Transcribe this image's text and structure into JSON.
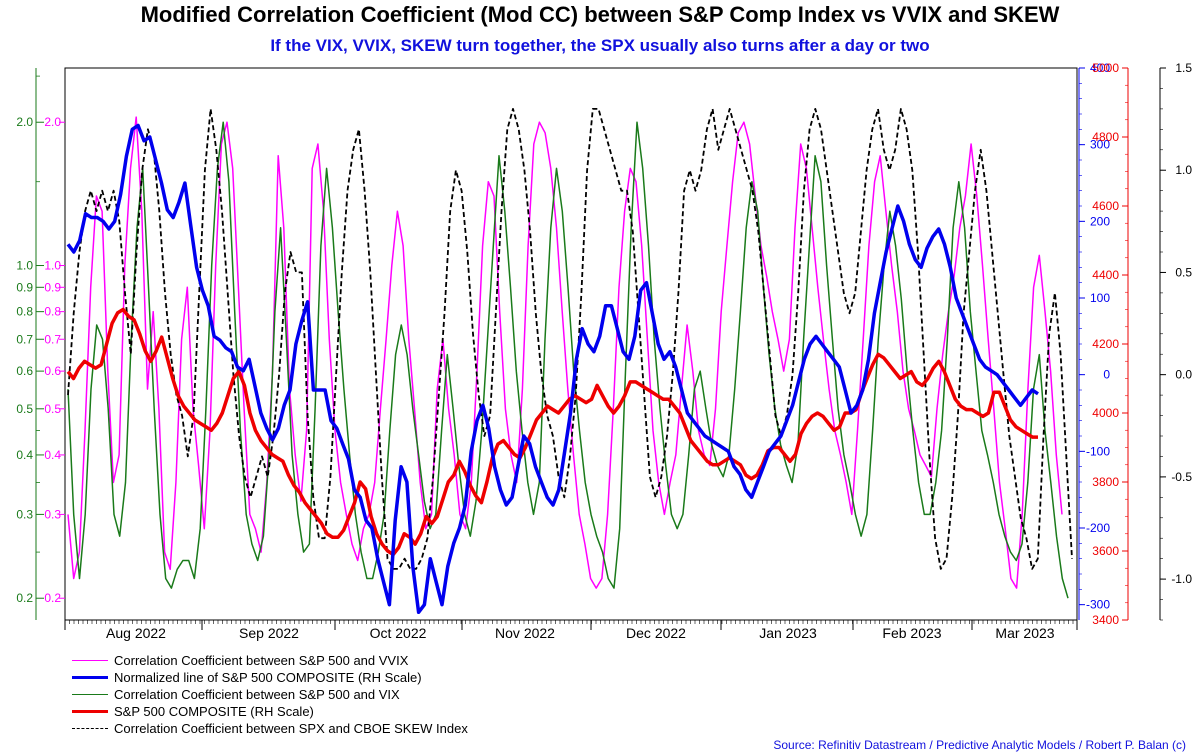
{
  "title": "Modified Correlation Coefficient (Mod CC) between S&P Comp Index vs VVIX and SKEW",
  "subtitle": "If the VIX, VVIX, SKEW turn together, the SPX usually also turns after a day or two",
  "source": "Source: Refinitiv Datastream / Predictive Analytic Models / Robert P. Balan (c)",
  "colors": {
    "vvix": "#ff00ff",
    "norm_spx": "#0000ee",
    "vix": "#1a7a1a",
    "spx": "#ee0000",
    "skew": "#000000",
    "left_axis": "#ff00ff",
    "left_axis2": "#1a7a1a",
    "blue_axis": "#0000ee",
    "red_axis": "#ee0000",
    "black_axis": "#000000"
  },
  "chart_data": {
    "type": "line",
    "x_tick_labels": [
      "Aug 2022",
      "Sep 2022",
      "Oct 2022",
      "Nov 2022",
      "Dec 2022",
      "Jan 2023",
      "Feb 2023",
      "Mar 2023"
    ],
    "left_axis": {
      "scale": "log",
      "range": [
        0.18,
        2.6
      ],
      "tick_labels": [
        "0.2",
        "0.3",
        "0.4",
        "0.5",
        "0.6",
        "0.7",
        "0.8",
        "0.9",
        "1.0",
        "2.0"
      ]
    },
    "blue_axis": {
      "range": [
        -320,
        400
      ],
      "tick_labels": [
        "400",
        "300",
        "200",
        "100",
        "0",
        "-100",
        "-200",
        "-300"
      ]
    },
    "red_axis": {
      "range": [
        3400,
        5000
      ],
      "tick_labels": [
        "5000",
        "4800",
        "4600",
        "4400",
        "4200",
        "4000",
        "3800",
        "3600",
        "3400"
      ]
    },
    "black_axis": {
      "range": [
        -1.2,
        1.5
      ],
      "tick_labels": [
        "1.5",
        "1.0",
        "0.5",
        "0.0",
        "-0.5",
        "-1.0"
      ]
    },
    "series": [
      {
        "name": "Correlation Coefficient between S&P 500 and VVIX",
        "axis": "left",
        "values": [
          0.3,
          0.22,
          0.25,
          0.45,
          0.9,
          1.4,
          1.3,
          0.6,
          0.35,
          0.4,
          1.0,
          1.6,
          2.05,
          1.3,
          0.55,
          0.8,
          0.5,
          0.25,
          0.23,
          0.35,
          0.7,
          0.9,
          0.5,
          0.38,
          0.28,
          0.45,
          1.0,
          1.8,
          2.0,
          1.6,
          0.9,
          0.5,
          0.3,
          0.28,
          0.25,
          0.35,
          0.6,
          1.7,
          1.2,
          0.55,
          0.4,
          0.32,
          0.45,
          1.6,
          1.8,
          1.3,
          0.7,
          0.45,
          0.35,
          0.3,
          0.26,
          0.24,
          0.28,
          0.3,
          0.35,
          0.5,
          0.7,
          1.0,
          1.3,
          1.1,
          0.7,
          0.5,
          0.35,
          0.28,
          0.3,
          0.55,
          0.7,
          0.5,
          0.4,
          0.3,
          0.28,
          0.35,
          0.6,
          1.1,
          1.5,
          1.4,
          0.8,
          0.5,
          0.4,
          0.35,
          0.55,
          1.1,
          1.8,
          2.0,
          1.9,
          1.6,
          1.2,
          0.8,
          0.55,
          0.4,
          0.3,
          0.26,
          0.22,
          0.21,
          0.22,
          0.3,
          0.5,
          0.9,
          1.3,
          1.6,
          1.5,
          1.1,
          0.7,
          0.45,
          0.35,
          0.3,
          0.35,
          0.4,
          0.55,
          0.75,
          0.6,
          0.45,
          0.4,
          0.38,
          0.5,
          0.8,
          1.1,
          1.5,
          1.9,
          2.0,
          1.8,
          1.4,
          1.1,
          0.95,
          0.8,
          0.7,
          0.6,
          0.7,
          1.2,
          1.8,
          1.6,
          1.2,
          0.9,
          0.7,
          0.55,
          0.45,
          0.4,
          0.35,
          0.3,
          0.45,
          0.7,
          1.1,
          1.5,
          1.7,
          1.3,
          1.0,
          0.8,
          0.6,
          0.5,
          0.45,
          0.4,
          0.38,
          0.36,
          0.5,
          0.65,
          0.8,
          0.95,
          1.2,
          1.4,
          1.8,
          1.4,
          1.0,
          0.7,
          0.5,
          0.35,
          0.28,
          0.22,
          0.21,
          0.3,
          0.55,
          0.9,
          1.05,
          0.8,
          0.6,
          0.4,
          0.3
        ]
      },
      {
        "name": "Normalized line of S&P 500 COMPOSITE (RH Scale)",
        "axis": "blue",
        "values": [
          170,
          160,
          175,
          210,
          205,
          205,
          200,
          190,
          200,
          235,
          285,
          320,
          325,
          305,
          310,
          280,
          250,
          215,
          205,
          225,
          250,
          195,
          140,
          110,
          90,
          50,
          45,
          35,
          30,
          10,
          5,
          20,
          -15,
          -50,
          -70,
          -85,
          -70,
          -40,
          -20,
          40,
          70,
          95,
          -20,
          -20,
          -20,
          -60,
          -70,
          -90,
          -110,
          -150,
          -160,
          -190,
          -200,
          -240,
          -270,
          -300,
          -190,
          -120,
          -140,
          -250,
          -310,
          -300,
          -240,
          -270,
          -300,
          -250,
          -220,
          -200,
          -170,
          -100,
          -60,
          -40,
          -70,
          -120,
          -150,
          -170,
          -160,
          -120,
          -80,
          -90,
          -120,
          -140,
          -160,
          -170,
          -150,
          -100,
          -50,
          20,
          60,
          40,
          30,
          50,
          90,
          90,
          60,
          30,
          20,
          50,
          110,
          120,
          80,
          40,
          20,
          30,
          10,
          -20,
          -50,
          -60,
          -70,
          -80,
          -85,
          -90,
          -95,
          -100,
          -120,
          -130,
          -150,
          -160,
          -140,
          -120,
          -100,
          -90,
          -80,
          -60,
          -40,
          -10,
          20,
          40,
          50,
          40,
          30,
          20,
          10,
          -20,
          -50,
          -40,
          -20,
          20,
          80,
          120,
          160,
          190,
          220,
          200,
          170,
          150,
          140,
          165,
          180,
          190,
          170,
          140,
          100,
          80,
          60,
          40,
          20,
          10,
          5,
          0,
          -10,
          -20,
          -30,
          -40,
          -30,
          -20,
          -25
        ]
      },
      {
        "name": "Correlation Coefficient between S&P 500 and VIX",
        "axis": "left",
        "values": [
          0.55,
          0.3,
          0.22,
          0.3,
          0.55,
          0.75,
          0.7,
          0.5,
          0.3,
          0.27,
          0.35,
          0.7,
          1.2,
          1.6,
          0.9,
          0.5,
          0.3,
          0.22,
          0.21,
          0.23,
          0.24,
          0.24,
          0.22,
          0.28,
          0.5,
          1.0,
          1.6,
          2.0,
          1.5,
          0.8,
          0.45,
          0.3,
          0.26,
          0.24,
          0.27,
          0.4,
          0.8,
          1.2,
          0.7,
          0.4,
          0.3,
          0.25,
          0.26,
          0.5,
          1.1,
          1.6,
          1.2,
          0.8,
          0.55,
          0.4,
          0.3,
          0.25,
          0.22,
          0.22,
          0.25,
          0.3,
          0.45,
          0.65,
          0.75,
          0.65,
          0.5,
          0.4,
          0.32,
          0.28,
          0.3,
          0.45,
          0.65,
          0.5,
          0.38,
          0.3,
          0.27,
          0.32,
          0.45,
          0.7,
          1.1,
          1.7,
          1.3,
          0.9,
          0.6,
          0.45,
          0.35,
          0.3,
          0.35,
          0.7,
          1.2,
          1.6,
          1.3,
          0.9,
          0.6,
          0.45,
          0.35,
          0.3,
          0.27,
          0.25,
          0.22,
          0.21,
          0.28,
          0.6,
          1.2,
          2.0,
          1.6,
          1.1,
          0.7,
          0.5,
          0.38,
          0.3,
          0.28,
          0.3,
          0.4,
          0.55,
          0.6,
          0.5,
          0.42,
          0.38,
          0.36,
          0.4,
          0.55,
          0.8,
          1.2,
          1.5,
          1.3,
          0.9,
          0.65,
          0.5,
          0.42,
          0.38,
          0.35,
          0.42,
          0.7,
          1.1,
          1.7,
          1.5,
          1.0,
          0.7,
          0.5,
          0.4,
          0.35,
          0.3,
          0.27,
          0.3,
          0.45,
          0.7,
          1.0,
          1.3,
          1.1,
          0.85,
          0.6,
          0.45,
          0.35,
          0.3,
          0.3,
          0.35,
          0.45,
          0.7,
          1.2,
          1.5,
          1.2,
          0.8,
          0.6,
          0.45,
          0.4,
          0.35,
          0.3,
          0.27,
          0.25,
          0.24,
          0.26,
          0.35,
          0.55,
          0.65,
          0.45,
          0.35,
          0.27,
          0.22,
          0.2
        ]
      },
      {
        "name": "S&P 500 COMPOSITE (RH Scale)",
        "axis": "red",
        "values": [
          4120,
          4100,
          4130,
          4150,
          4140,
          4130,
          4140,
          4200,
          4260,
          4290,
          4300,
          4280,
          4270,
          4230,
          4180,
          4150,
          4180,
          4220,
          4160,
          4100,
          4050,
          4020,
          4000,
          3980,
          3970,
          3960,
          3950,
          3970,
          4000,
          4050,
          4100,
          4120,
          4080,
          4000,
          3950,
          3920,
          3900,
          3880,
          3870,
          3860,
          3820,
          3790,
          3770,
          3740,
          3720,
          3700,
          3680,
          3650,
          3640,
          3640,
          3660,
          3700,
          3740,
          3800,
          3780,
          3700,
          3650,
          3620,
          3600,
          3590,
          3610,
          3650,
          3640,
          3620,
          3650,
          3700,
          3680,
          3700,
          3750,
          3800,
          3820,
          3860,
          3830,
          3790,
          3760,
          3740,
          3800,
          3870,
          3910,
          3920,
          3900,
          3880,
          3870,
          3900,
          3940,
          3980,
          4000,
          4020,
          4010,
          4000,
          4020,
          4040,
          4050,
          4040,
          4030,
          4040,
          4080,
          4050,
          4020,
          4000,
          4020,
          4050,
          4090,
          4090,
          4080,
          4070,
          4060,
          4050,
          4040,
          4040,
          4020,
          4000,
          3960,
          3920,
          3900,
          3880,
          3860,
          3850,
          3850,
          3860,
          3870,
          3860,
          3850,
          3820,
          3810,
          3820,
          3850,
          3890,
          3900,
          3900,
          3880,
          3860,
          3880,
          3940,
          3970,
          3990,
          4000,
          3990,
          3970,
          3950,
          3960,
          4000,
          4000,
          4010,
          4060,
          4100,
          4140,
          4170,
          4160,
          4140,
          4120,
          4100,
          4110,
          4120,
          4090,
          4080,
          4100,
          4130,
          4150,
          4120,
          4080,
          4040,
          4020,
          4010,
          4010,
          4000,
          3990,
          4000,
          4060,
          4060,
          4020,
          3980,
          3960,
          3950,
          3940,
          3930,
          3930
        ]
      },
      {
        "name": "Correlation Coefficient between SPX and CBOE SKEW Index",
        "axis": "black",
        "values": [
          -0.1,
          0.3,
          0.6,
          0.8,
          0.9,
          0.8,
          0.9,
          0.8,
          0.9,
          0.75,
          0.4,
          0.1,
          0.6,
          1.0,
          1.2,
          1.1,
          0.8,
          0.4,
          0.1,
          -0.1,
          -0.2,
          -0.4,
          -0.2,
          0.4,
          1.0,
          1.3,
          1.1,
          0.8,
          0.4,
          0.0,
          -0.3,
          -0.5,
          -0.6,
          -0.5,
          -0.4,
          -0.5,
          -0.3,
          0.0,
          0.4,
          0.6,
          0.5,
          0.5,
          -0.2,
          -0.6,
          -0.8,
          -0.8,
          -0.5,
          0.0,
          0.5,
          0.9,
          1.1,
          1.2,
          0.9,
          0.5,
          0.0,
          -0.5,
          -0.9,
          -0.95,
          -0.95,
          -0.9,
          -0.95,
          -0.95,
          -0.9,
          -0.8,
          -0.5,
          -0.1,
          0.3,
          0.8,
          1.0,
          0.9,
          0.6,
          0.2,
          -0.1,
          -0.3,
          -0.2,
          0.3,
          0.8,
          1.2,
          1.3,
          1.2,
          1.0,
          0.7,
          0.3,
          0.0,
          -0.2,
          -0.3,
          -0.5,
          -0.6,
          -0.4,
          -0.1,
          0.4,
          1.0,
          1.3,
          1.3,
          1.2,
          1.1,
          1.0,
          0.9,
          0.9,
          0.7,
          0.3,
          -0.1,
          -0.5,
          -0.6,
          -0.5,
          -0.3,
          0.0,
          0.4,
          0.9,
          1.0,
          0.9,
          1.0,
          1.2,
          1.3,
          1.1,
          1.2,
          1.3,
          1.2,
          1.1,
          1.0,
          0.9,
          0.7,
          0.4,
          0.1,
          -0.2,
          -0.3,
          -0.2,
          0.0,
          0.4,
          0.9,
          1.2,
          1.3,
          1.2,
          1.0,
          0.8,
          0.6,
          0.4,
          0.3,
          0.4,
          0.7,
          1.0,
          1.2,
          1.3,
          1.1,
          1.0,
          1.1,
          1.3,
          1.2,
          1.0,
          0.6,
          0.1,
          -0.4,
          -0.8,
          -0.95,
          -0.9,
          -0.6,
          -0.2,
          0.3,
          0.6,
          0.9,
          1.1,
          0.9,
          0.6,
          0.3,
          0.0,
          -0.3,
          -0.5,
          -0.7,
          -0.8,
          -0.95,
          -0.9,
          -0.3,
          0.2,
          0.4,
          0.1,
          -0.4,
          -0.9
        ]
      }
    ],
    "legend_placement": "bottom-left",
    "grid": false
  },
  "legend": [
    {
      "label": "Correlation Coefficient between S&P 500 and VVIX",
      "color": "#ff00ff",
      "style": "solid",
      "width": 1.5
    },
    {
      "label": "Normalized line of S&P 500 COMPOSITE (RH Scale)",
      "color": "#0000ee",
      "style": "solid",
      "width": 3.5
    },
    {
      "label": "Correlation Coefficient between S&P 500 and VIX",
      "color": "#1a7a1a",
      "style": "solid",
      "width": 1.5
    },
    {
      "label": "S&P 500 COMPOSITE (RH Scale)",
      "color": "#ee0000",
      "style": "solid",
      "width": 3.5
    },
    {
      "label": "Correlation Coefficient between SPX and CBOE SKEW Index",
      "color": "#000000",
      "style": "dashed",
      "width": 1.8
    }
  ]
}
